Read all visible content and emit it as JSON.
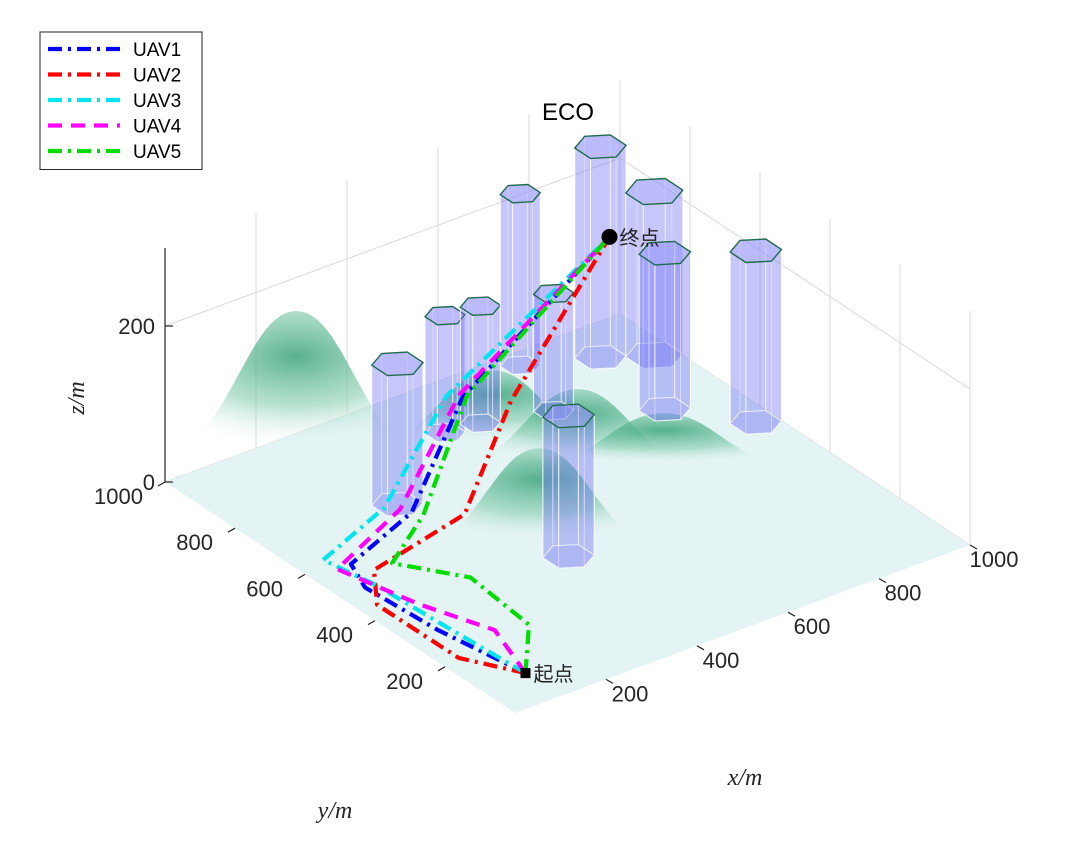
{
  "chart_data": {
    "type": "line",
    "title": "ECO",
    "xlabel": "x/m",
    "ylabel": "y/m",
    "zlabel": "z/m",
    "xlim": [
      0,
      1000
    ],
    "ylim": [
      0,
      1000
    ],
    "zlim": [
      0,
      300
    ],
    "x_ticks": [
      "200",
      "400",
      "600",
      "800",
      "1000"
    ],
    "y_ticks": [
      "200",
      "400",
      "600",
      "800",
      "1000"
    ],
    "z_ticks": [
      "0",
      "200"
    ],
    "grid": true,
    "legend_position": "top-left",
    "start": {
      "label": "起点",
      "x": 100,
      "y": 100,
      "z": 0
    },
    "end": {
      "label": "终点",
      "x": 900,
      "y": 900,
      "z": 150
    },
    "series": [
      {
        "name": "UAV1",
        "color": "#0000ff",
        "style": "dashdot",
        "x": [
          100,
          60,
          40,
          70,
          250,
          500,
          900
        ],
        "y": [
          100,
          300,
          480,
          560,
          620,
          800,
          900
        ],
        "z": [
          0,
          5,
          10,
          10,
          20,
          60,
          150
        ]
      },
      {
        "name": "UAV2",
        "color": "#ff0000",
        "style": "dashdot",
        "x": [
          100,
          30,
          20,
          90,
          320,
          560,
          900
        ],
        "y": [
          100,
          200,
          420,
          520,
          560,
          740,
          900
        ],
        "z": [
          0,
          5,
          10,
          10,
          20,
          60,
          150
        ]
      },
      {
        "name": "UAV3",
        "color": "#00e5ee",
        "style": "dashdot",
        "x": [
          100,
          80,
          60,
          40,
          220,
          480,
          900
        ],
        "y": [
          100,
          280,
          480,
          600,
          660,
          820,
          900
        ],
        "z": [
          0,
          5,
          10,
          10,
          20,
          60,
          150
        ]
      },
      {
        "name": "UAV4",
        "color": "#ff00ff",
        "style": "dashed",
        "x": [
          100,
          140,
          80,
          40,
          240,
          500,
          900
        ],
        "y": [
          100,
          240,
          380,
          560,
          640,
          810,
          900
        ],
        "z": [
          0,
          5,
          10,
          10,
          20,
          60,
          150
        ]
      },
      {
        "name": "UAV5",
        "color": "#00dd00",
        "style": "dashdot",
        "x": [
          100,
          200,
          210,
          130,
          260,
          510,
          900
        ],
        "y": [
          100,
          220,
          400,
          520,
          600,
          800,
          900
        ],
        "z": [
          0,
          5,
          10,
          10,
          20,
          60,
          150
        ]
      }
    ],
    "obstacles": [
      {
        "x": 280,
        "y": 700,
        "r": 45,
        "h": 180
      },
      {
        "x": 500,
        "y": 850,
        "r": 35,
        "h": 150
      },
      {
        "x": 570,
        "y": 840,
        "r": 35,
        "h": 150
      },
      {
        "x": 750,
        "y": 960,
        "r": 35,
        "h": 220
      },
      {
        "x": 700,
        "y": 800,
        "r": 35,
        "h": 150
      },
      {
        "x": 410,
        "y": 380,
        "r": 45,
        "h": 180
      },
      {
        "x": 880,
        "y": 900,
        "r": 45,
        "h": 270
      },
      {
        "x": 960,
        "y": 850,
        "r": 50,
        "h": 210
      },
      {
        "x": 860,
        "y": 690,
        "r": 45,
        "h": 200
      },
      {
        "x": 960,
        "y": 560,
        "r": 45,
        "h": 220
      }
    ],
    "terrain_peaks": [
      {
        "x": 250,
        "y": 950,
        "h": 180,
        "s": 120
      },
      {
        "x": 550,
        "y": 780,
        "h": 90,
        "s": 110
      },
      {
        "x": 400,
        "y": 450,
        "h": 120,
        "s": 110
      },
      {
        "x": 630,
        "y": 640,
        "h": 90,
        "s": 110
      },
      {
        "x": 750,
        "y": 550,
        "h": 60,
        "s": 120
      }
    ]
  }
}
